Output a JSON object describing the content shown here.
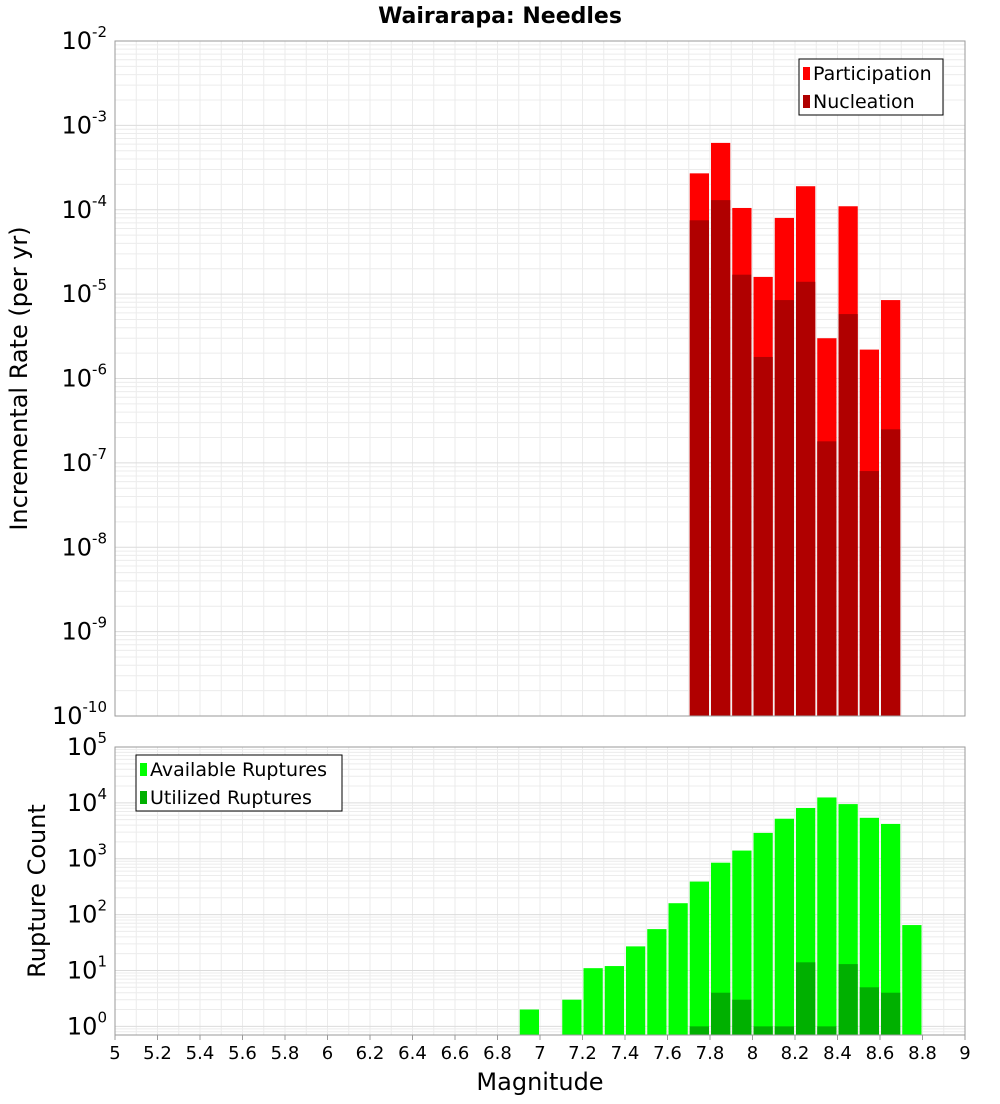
{
  "chart_data": [
    {
      "type": "bar",
      "title": "Wairarapa: Needles",
      "xlabel": "",
      "ylabel": "Incremental Rate (per yr)",
      "y_scale": "log",
      "ylim": [
        1e-10,
        0.01
      ],
      "xlim": [
        5,
        9
      ],
      "bar_width": 0.1,
      "y_tick_exponents": [
        -10,
        -9,
        -8,
        -7,
        -6,
        -5,
        -4,
        -3,
        -2
      ],
      "legend_position": "top-right",
      "series": [
        {
          "name": "Participation",
          "color": "#ff0000",
          "x": [
            7.75,
            7.85,
            7.95,
            8.05,
            8.15,
            8.25,
            8.35,
            8.45,
            8.55,
            8.65
          ],
          "values": [
            0.00027,
            0.00062,
            0.000105,
            1.6e-05,
            8e-05,
            0.00019,
            3e-06,
            0.00011,
            2.2e-06,
            8.5e-06
          ]
        },
        {
          "name": "Nucleation",
          "color": "#b00000",
          "x": [
            7.75,
            7.85,
            7.95,
            8.05,
            8.15,
            8.25,
            8.35,
            8.45,
            8.55,
            8.65
          ],
          "values": [
            7.5e-05,
            0.00013,
            1.7e-05,
            1.8e-06,
            8.5e-06,
            1.4e-05,
            1.8e-07,
            5.8e-06,
            8e-08,
            2.5e-07
          ]
        }
      ]
    },
    {
      "type": "bar",
      "title": "",
      "xlabel": "Magnitude",
      "ylabel": "Rupture Count",
      "y_scale": "log",
      "ylim": [
        0.7,
        100000
      ],
      "xlim": [
        5,
        9
      ],
      "bar_width": 0.1,
      "y_tick_exponents": [
        0,
        1,
        2,
        3,
        4,
        5
      ],
      "x_ticks": [
        "5",
        "5.2",
        "5.4",
        "5.6",
        "5.8",
        "6",
        "6.2",
        "6.4",
        "6.6",
        "6.8",
        "7",
        "7.2",
        "7.4",
        "7.6",
        "7.8",
        "8",
        "8.2",
        "8.4",
        "8.6",
        "8.8",
        "9"
      ],
      "legend_position": "top-left",
      "series": [
        {
          "name": "Available Ruptures",
          "color": "#00ff00",
          "x": [
            6.95,
            7.15,
            7.25,
            7.35,
            7.45,
            7.55,
            7.65,
            7.75,
            7.85,
            7.95,
            8.05,
            8.15,
            8.25,
            8.35,
            8.45,
            8.55,
            8.65,
            8.75
          ],
          "values": [
            2,
            3,
            11,
            12,
            27,
            55,
            160,
            390,
            850,
            1400,
            2900,
            5200,
            8100,
            12500,
            9500,
            5400,
            4200,
            65
          ]
        },
        {
          "name": "Utilized Ruptures",
          "color": "#00b000",
          "x": [
            7.75,
            7.85,
            7.95,
            8.05,
            8.15,
            8.25,
            8.35,
            8.45,
            8.55,
            8.65
          ],
          "values": [
            1,
            4,
            3,
            1,
            1,
            14,
            1,
            13,
            5,
            4
          ]
        }
      ]
    }
  ]
}
